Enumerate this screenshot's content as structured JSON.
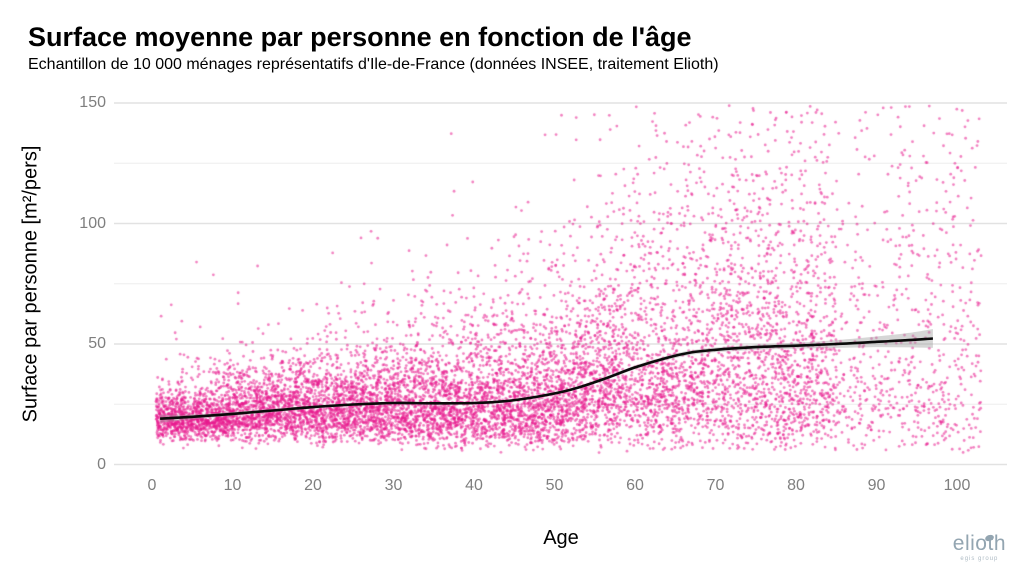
{
  "header": {
    "title": "Surface moyenne par personne en fonction de l'âge",
    "subtitle": "Echantillon de 10 000 ménages représentatifs d'Ile-de-France (données INSEE, traitement Elioth)"
  },
  "branding": {
    "logo_text": "elioth",
    "logo_tagline": "egis group",
    "logo_color": "#93a5b1"
  },
  "chart_data": {
    "type": "scatter",
    "title": "Surface moyenne par personne en fonction de l'âge",
    "subtitle": "Echantillon de 10 000 ménages représentatifs d'Ile-de-France (données INSEE, traitement Elioth)",
    "xlabel": "Age",
    "ylabel": "Surface par personne [m²/pers]",
    "xlim": [
      0,
      105
    ],
    "ylim": [
      0,
      152
    ],
    "x_ticks": [
      0,
      10,
      20,
      30,
      40,
      50,
      60,
      70,
      80,
      90,
      100
    ],
    "y_ticks": [
      0,
      50,
      100,
      150
    ],
    "y_minor_ticks": [
      25,
      75,
      125
    ],
    "grid": "horizontal-only",
    "legend": "none",
    "sample_size_stated": 10000,
    "point_color": "#e71c8e",
    "point_opacity": 0.55,
    "point_radius": 1.4,
    "major_grid_color": "#e2e2e2",
    "minor_grid_color": "#eeeeee",
    "tick_label_color": "#7f7f7f",
    "trend_line": {
      "color": "#0a0a0a",
      "width": 2.6,
      "band_color": "#9e9e9e",
      "band_opacity": 0.42,
      "points": [
        [
          1,
          19.0
        ],
        [
          5,
          19.8
        ],
        [
          10,
          21.0
        ],
        [
          15,
          22.4
        ],
        [
          20,
          23.8
        ],
        [
          25,
          24.9
        ],
        [
          30,
          25.5
        ],
        [
          35,
          25.4
        ],
        [
          40,
          25.5
        ],
        [
          44,
          26.3
        ],
        [
          48,
          28.2
        ],
        [
          52,
          31.0
        ],
        [
          56,
          35.3
        ],
        [
          60,
          40.3
        ],
        [
          64,
          44.3
        ],
        [
          67,
          46.5
        ],
        [
          70,
          47.6
        ],
        [
          75,
          48.7
        ],
        [
          80,
          49.3
        ],
        [
          85,
          50.0
        ],
        [
          90,
          50.9
        ],
        [
          94,
          51.6
        ],
        [
          97,
          52.3
        ]
      ],
      "band_halfwidths": [
        1.6,
        1.0,
        0.8,
        0.7,
        0.6,
        0.55,
        0.5,
        0.5,
        0.5,
        0.5,
        0.55,
        0.6,
        0.7,
        0.8,
        0.85,
        0.9,
        0.95,
        1.05,
        1.2,
        1.6,
        2.2,
        3.0,
        3.9
      ]
    },
    "scatter_generator": {
      "seed": 42,
      "n": 10000,
      "age_mixture": [
        {
          "p": 0.68,
          "lo": 0.5,
          "hi": 58
        },
        {
          "p": 0.26,
          "lo": 58,
          "hi": 85
        },
        {
          "p": 0.06,
          "lo": 85,
          "hi": 103
        }
      ],
      "sigma_base": 0.28,
      "sigma_slope": 0.0052,
      "tail_prob": 0.015,
      "tail_min_factor": 1.3,
      "tail_span_factor": 1.2,
      "elderly_low_prob": 0.1,
      "elderly_age_threshold": 60,
      "y_min": 3.5,
      "y_max": 149
    }
  }
}
